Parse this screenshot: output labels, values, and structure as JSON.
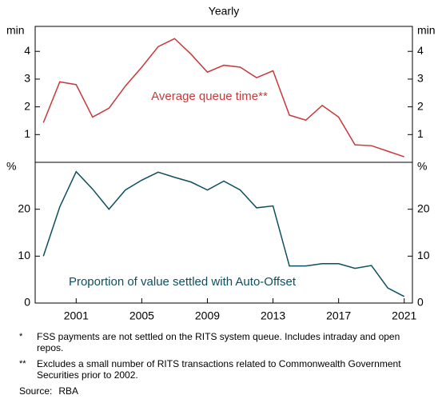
{
  "chart_data": [
    {
      "type": "line",
      "subtitle": "Yearly",
      "y_unit": "min",
      "x": [
        1999,
        2000,
        2001,
        2002,
        2003,
        2004,
        2005,
        2006,
        2007,
        2008,
        2009,
        2010,
        2011,
        2012,
        2013,
        2014,
        2015,
        2016,
        2017,
        2018,
        2019,
        2020,
        2021
      ],
      "xlim": [
        1998.5,
        2021.5
      ],
      "series": [
        {
          "name": "Average queue time**",
          "color": "#c8393b",
          "values": [
            1.43,
            2.9,
            2.8,
            1.63,
            1.95,
            2.75,
            3.43,
            4.17,
            4.46,
            3.9,
            3.25,
            3.5,
            3.43,
            3.05,
            3.3,
            1.7,
            1.52,
            2.05,
            1.63,
            0.63,
            0.6,
            0.4,
            0.2
          ]
        }
      ],
      "ylim": [
        0,
        4.9
      ],
      "yticks": [
        1,
        2,
        3,
        4
      ]
    },
    {
      "type": "line",
      "y_unit": "%",
      "x": [
        1999,
        2000,
        2001,
        2002,
        2003,
        2004,
        2005,
        2006,
        2007,
        2008,
        2009,
        2010,
        2011,
        2012,
        2013,
        2014,
        2015,
        2016,
        2017,
        2018,
        2019,
        2020,
        2021
      ],
      "xlim": [
        1998.5,
        2021.5
      ],
      "xticks": [
        2001,
        2005,
        2009,
        2013,
        2017,
        2021
      ],
      "series": [
        {
          "name": "Proportion of value settled with Auto-Offset",
          "color": "#0e4f5d",
          "values": [
            10,
            20.5,
            28,
            24.3,
            20,
            24.1,
            26.2,
            27.9,
            26.8,
            25.8,
            24.1,
            26,
            24.1,
            20.3,
            20.7,
            7.9,
            7.9,
            8.4,
            8.4,
            7.4,
            8.0,
            3.2,
            1.4
          ]
        }
      ],
      "ylim": [
        0,
        30
      ],
      "yticks": [
        0,
        10,
        20
      ]
    }
  ],
  "notes": [
    {
      "marker": "*",
      "text": "FSS payments are not settled on the RITS system queue. Includes intraday and open repos."
    },
    {
      "marker": "**",
      "text": "Excludes a small number of RITS transactions related to Commonwealth Government Securities prior to 2002."
    }
  ],
  "source": {
    "label": "Source:",
    "text": "RBA"
  }
}
